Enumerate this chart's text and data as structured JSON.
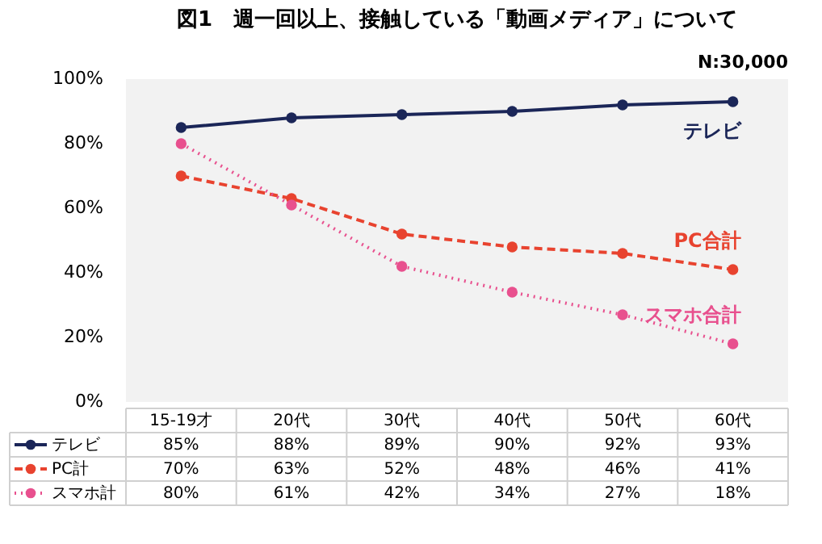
{
  "chart_data": {
    "type": "line",
    "title": "図1　週一回以上、接触している「動画メディア」について",
    "categories": [
      "15-19才",
      "20代",
      "30代",
      "40代",
      "50代",
      "60代"
    ],
    "series": [
      {
        "name": "テレビ",
        "color": "#1b2658",
        "line_style": "solid",
        "values": [
          85,
          88,
          89,
          90,
          92,
          93
        ],
        "value_labels": [
          "85%",
          "88%",
          "89%",
          "90%",
          "92%",
          "93%"
        ]
      },
      {
        "name": "PC計",
        "color": "#e8432f",
        "line_style": "dashed",
        "values": [
          70,
          63,
          52,
          48,
          46,
          41
        ],
        "value_labels": [
          "70%",
          "63%",
          "52%",
          "48%",
          "46%",
          "41%"
        ]
      },
      {
        "name": "スマホ計",
        "color": "#e8508e",
        "line_style": "dotted",
        "values": [
          80,
          61,
          42,
          34,
          27,
          18
        ],
        "value_labels": [
          "80%",
          "61%",
          "42%",
          "34%",
          "27%",
          "18%"
        ]
      }
    ],
    "ylim": [
      0,
      100
    ],
    "yticks": [
      {
        "value": 0,
        "label": "0%"
      },
      {
        "value": 20,
        "label": "20%"
      },
      {
        "value": 40,
        "label": "40%"
      },
      {
        "value": 60,
        "label": "60%"
      },
      {
        "value": 80,
        "label": "80%"
      },
      {
        "value": 100,
        "label": "100%"
      }
    ],
    "annotations": [
      "N:30,000",
      "テレビ",
      "PC合計",
      "スマホ合計"
    ],
    "marker": "circle",
    "grid": false,
    "legend": "bottom"
  }
}
